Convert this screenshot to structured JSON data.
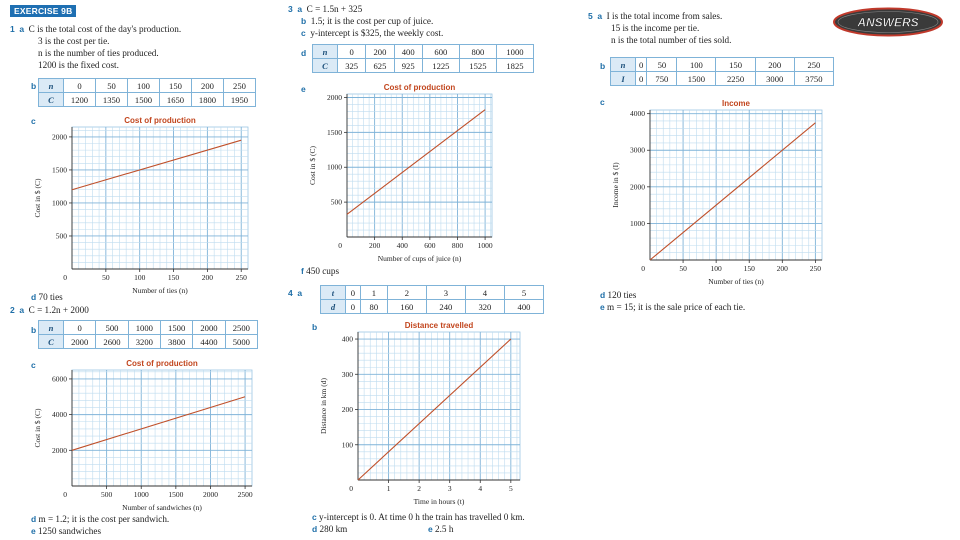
{
  "header": {
    "exercise": "EXERCISE 9B"
  },
  "logo": {
    "text": "ANSWERS"
  },
  "q1": {
    "num": "1",
    "a": "a",
    "lines": [
      "C is the total cost of the day's production.",
      "3 is the cost per tie.",
      "n is the number of ties produced.",
      "1200 is the fixed cost."
    ],
    "b": "b",
    "c": "c",
    "d": "d",
    "d_text": "70 ties",
    "table": {
      "headers": [
        "n",
        "C"
      ],
      "rows": [
        [
          "0",
          "50",
          "100",
          "150",
          "200",
          "250"
        ],
        [
          "1200",
          "1350",
          "1500",
          "1650",
          "1800",
          "1950"
        ]
      ]
    }
  },
  "q2": {
    "num": "2",
    "a": "a",
    "a_text": "C = 1.2n + 2000",
    "b": "b",
    "c": "c",
    "d": "d",
    "d_text": "m = 1.2; it is the cost per sandwich.",
    "e": "e",
    "e_text": "1250 sandwiches",
    "table": {
      "headers": [
        "n",
        "C"
      ],
      "rows": [
        [
          "0",
          "500",
          "1000",
          "1500",
          "2000",
          "2500"
        ],
        [
          "2000",
          "2600",
          "3200",
          "3800",
          "4400",
          "5000"
        ]
      ]
    }
  },
  "q3": {
    "num": "3",
    "a": "a",
    "a_text": "C = 1.5n + 325",
    "b": "b",
    "b_text": "1.5; it is the cost per cup of juice.",
    "c_top": "c",
    "c_top_text": "y-intercept is $325, the weekly cost.",
    "d": "d",
    "e": "e",
    "f": "f",
    "f_text": "450 cups",
    "table": {
      "headers": [
        "n",
        "C"
      ],
      "rows": [
        [
          "0",
          "200",
          "400",
          "600",
          "800",
          "1000"
        ],
        [
          "325",
          "625",
          "925",
          "1225",
          "1525",
          "1825"
        ]
      ]
    }
  },
  "q4": {
    "num": "4",
    "a": "a",
    "b": "b",
    "c": "c",
    "c_text": "y-intercept is 0. At time 0 h the train has travelled 0 km.",
    "d": "d",
    "d_text": "280 km",
    "e": "e",
    "e_text": "2.5 h",
    "table": {
      "headers": [
        "t",
        "d"
      ],
      "rows": [
        [
          "0",
          "1",
          "2",
          "3",
          "4",
          "5"
        ],
        [
          "0",
          "80",
          "160",
          "240",
          "320",
          "400"
        ]
      ]
    }
  },
  "q5": {
    "num": "5",
    "a": "a",
    "lines": [
      "I is the total income from sales.",
      "15 is the income per tie.",
      "n is the total number of ties sold."
    ],
    "b": "b",
    "c": "c",
    "d": "d",
    "d_text": "120 ties",
    "e": "e",
    "e_text": "m = 15; it is the sale price of each tie.",
    "table": {
      "headers": [
        "n",
        "I"
      ],
      "rows": [
        [
          "0",
          "50",
          "100",
          "150",
          "200",
          "250"
        ],
        [
          "0",
          "750",
          "1500",
          "2250",
          "3000",
          "3750"
        ]
      ]
    }
  },
  "chart_data": [
    {
      "id": "chart1",
      "type": "line",
      "title": "Cost of production",
      "xlabel": "Number of ties (n)",
      "ylabel": "Cost in $ (C)",
      "xlim": [
        0,
        260
      ],
      "ylim": [
        0,
        2150
      ],
      "xticks": [
        50,
        100,
        150,
        200,
        250
      ],
      "yticks": [
        500,
        1000,
        1500,
        2000
      ],
      "origin_label": "0",
      "series": [
        {
          "name": "C",
          "x": [
            0,
            250
          ],
          "y": [
            1200,
            1950
          ]
        }
      ]
    },
    {
      "id": "chart2",
      "type": "line",
      "title": "Cost of production",
      "xlabel": "Number of sandwiches (n)",
      "ylabel": "Cost in $ (C)",
      "xlim": [
        0,
        2600
      ],
      "ylim": [
        0,
        6500
      ],
      "xticks": [
        500,
        1000,
        1500,
        2000,
        2500
      ],
      "yticks": [
        2000,
        4000,
        6000
      ],
      "origin_label": "0",
      "series": [
        {
          "name": "C",
          "x": [
            0,
            2500
          ],
          "y": [
            2000,
            5000
          ]
        }
      ]
    },
    {
      "id": "chart3",
      "type": "line",
      "title": "Cost of production",
      "xlabel": "Number of cups of juice (n)",
      "ylabel": "Cost in $ (C)",
      "xlim": [
        0,
        1050
      ],
      "ylim": [
        0,
        2050
      ],
      "xticks": [
        200,
        400,
        600,
        800,
        1000
      ],
      "yticks": [
        500,
        1000,
        1500,
        2000
      ],
      "origin_label": "0",
      "series": [
        {
          "name": "C",
          "x": [
            0,
            1000
          ],
          "y": [
            325,
            1825
          ]
        }
      ]
    },
    {
      "id": "chart4",
      "type": "line",
      "title": "Distance travelled",
      "xlabel": "Time in hours (t)",
      "ylabel": "Distance in km (d)",
      "xlim": [
        0,
        5.3
      ],
      "ylim": [
        0,
        420
      ],
      "xticks": [
        1,
        2,
        3,
        4,
        5
      ],
      "yticks": [
        100,
        200,
        300,
        400
      ],
      "origin_label": "0",
      "series": [
        {
          "name": "d",
          "x": [
            0,
            5
          ],
          "y": [
            0,
            400
          ]
        }
      ]
    },
    {
      "id": "chart5",
      "type": "line",
      "title": "Income",
      "xlabel": "Number of ties (n)",
      "ylabel": "Income in $ (I)",
      "xlim": [
        0,
        260
      ],
      "ylim": [
        0,
        4100
      ],
      "xticks": [
        50,
        100,
        150,
        200,
        250
      ],
      "yticks": [
        1000,
        2000,
        3000,
        4000
      ],
      "origin_label": "0",
      "series": [
        {
          "name": "I",
          "x": [
            0,
            250
          ],
          "y": [
            0,
            3750
          ]
        }
      ]
    }
  ]
}
